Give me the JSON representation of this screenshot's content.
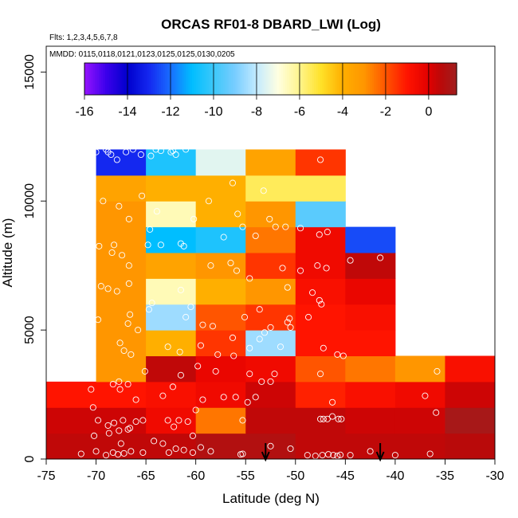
{
  "chart_data": {
    "type": "heatmap",
    "title": "ORCAS RF01-8 DBARD_LWI (Log)",
    "flights_note": "Flts: 1,2,3,4,5,6,7,8",
    "dates_note": "MMDD: 0115,0118,0121,0123,0125,0125,0130,0205",
    "xlabel": "Latitude (deg N)",
    "ylabel": "Altitude (m)",
    "xlim": [
      -75,
      -30
    ],
    "ylim": [
      0,
      16000
    ],
    "x_ticks": [
      -75,
      -70,
      -65,
      -60,
      -55,
      -50,
      -45,
      -40,
      -35,
      -30
    ],
    "y_ticks": [
      0,
      5000,
      10000,
      15000
    ],
    "colorbar": {
      "range": [
        -16,
        1.3
      ],
      "ticks": [
        -16,
        -14,
        -12,
        -10,
        -8,
        -6,
        -4,
        -2,
        0
      ]
    },
    "cell_size": {
      "lat": 5,
      "alt": 1000
    },
    "cells": [
      {
        "lat": -75,
        "alt": 0,
        "v": 0.5
      },
      {
        "lat": -70,
        "alt": 0,
        "v": 0.5
      },
      {
        "lat": -65,
        "alt": 0,
        "v": 0.5
      },
      {
        "lat": -60,
        "alt": 0,
        "v": 0.8
      },
      {
        "lat": -55,
        "alt": 0,
        "v": 0.8
      },
      {
        "lat": -50,
        "alt": 0,
        "v": 0.5
      },
      {
        "lat": -45,
        "alt": 0,
        "v": 0.5
      },
      {
        "lat": -40,
        "alt": 0,
        "v": 0.5
      },
      {
        "lat": -35,
        "alt": 0,
        "v": 0.6
      },
      {
        "lat": -75,
        "alt": 1000,
        "v": 0.3
      },
      {
        "lat": -70,
        "alt": 1000,
        "v": 0.3
      },
      {
        "lat": -65,
        "alt": 1000,
        "v": -0.5
      },
      {
        "lat": -60,
        "alt": 1000,
        "v": -2.5
      },
      {
        "lat": -55,
        "alt": 1000,
        "v": 0.5
      },
      {
        "lat": -50,
        "alt": 1000,
        "v": 0.5
      },
      {
        "lat": -45,
        "alt": 1000,
        "v": 0.3
      },
      {
        "lat": -40,
        "alt": 1000,
        "v": 0.3
      },
      {
        "lat": -35,
        "alt": 1000,
        "v": 1.1
      },
      {
        "lat": -75,
        "alt": 2000,
        "v": -1.0
      },
      {
        "lat": -70,
        "alt": 2000,
        "v": -1.0
      },
      {
        "lat": -65,
        "alt": 2000,
        "v": -0.8
      },
      {
        "lat": -60,
        "alt": 2000,
        "v": -0.5
      },
      {
        "lat": -55,
        "alt": 2000,
        "v": 0.3
      },
      {
        "lat": -50,
        "alt": 2000,
        "v": -1.2
      },
      {
        "lat": -45,
        "alt": 2000,
        "v": -0.8
      },
      {
        "lat": -40,
        "alt": 2000,
        "v": -0.5
      },
      {
        "lat": -35,
        "alt": 2000,
        "v": 0.3
      },
      {
        "lat": -70,
        "alt": 3000,
        "v": -3.0
      },
      {
        "lat": -65,
        "alt": 3000,
        "v": 0.5
      },
      {
        "lat": -60,
        "alt": 3000,
        "v": -0.3
      },
      {
        "lat": -55,
        "alt": 3000,
        "v": -0.5
      },
      {
        "lat": -50,
        "alt": 3000,
        "v": -2.0
      },
      {
        "lat": -45,
        "alt": 3000,
        "v": -2.5
      },
      {
        "lat": -40,
        "alt": 3000,
        "v": -3.0
      },
      {
        "lat": -35,
        "alt": 3000,
        "v": -0.8
      },
      {
        "lat": -70,
        "alt": 4000,
        "v": -3.0
      },
      {
        "lat": -65,
        "alt": 4000,
        "v": -4.0
      },
      {
        "lat": -60,
        "alt": 4000,
        "v": -1.5
      },
      {
        "lat": -55,
        "alt": 4000,
        "v": -8.5
      },
      {
        "lat": -50,
        "alt": 4000,
        "v": -1.0
      },
      {
        "lat": -45,
        "alt": 4000,
        "v": -1.0
      },
      {
        "lat": -70,
        "alt": 5000,
        "v": -3.0
      },
      {
        "lat": -65,
        "alt": 5000,
        "v": -8.5
      },
      {
        "lat": -60,
        "alt": 5000,
        "v": -2.0
      },
      {
        "lat": -55,
        "alt": 5000,
        "v": -1.5
      },
      {
        "lat": -50,
        "alt": 5000,
        "v": -1.0
      },
      {
        "lat": -45,
        "alt": 5000,
        "v": -0.8
      },
      {
        "lat": -70,
        "alt": 6000,
        "v": -3.0
      },
      {
        "lat": -65,
        "alt": 6000,
        "v": -6.5
      },
      {
        "lat": -60,
        "alt": 6000,
        "v": -4.0
      },
      {
        "lat": -55,
        "alt": 6000,
        "v": -3.0
      },
      {
        "lat": -50,
        "alt": 6000,
        "v": -0.8
      },
      {
        "lat": -45,
        "alt": 6000,
        "v": -0.3
      },
      {
        "lat": -70,
        "alt": 7000,
        "v": -3.0
      },
      {
        "lat": -65,
        "alt": 7000,
        "v": -3.5
      },
      {
        "lat": -60,
        "alt": 7000,
        "v": -3.0
      },
      {
        "lat": -55,
        "alt": 7000,
        "v": -1.5
      },
      {
        "lat": -50,
        "alt": 7000,
        "v": -0.5
      },
      {
        "lat": -45,
        "alt": 7000,
        "v": 0.5
      },
      {
        "lat": -70,
        "alt": 8000,
        "v": -3.0
      },
      {
        "lat": -65,
        "alt": 8000,
        "v": -11.0
      },
      {
        "lat": -60,
        "alt": 8000,
        "v": -10.5
      },
      {
        "lat": -55,
        "alt": 8000,
        "v": -2.5
      },
      {
        "lat": -50,
        "alt": 8000,
        "v": -0.5
      },
      {
        "lat": -45,
        "alt": 8000,
        "v": -12.5
      },
      {
        "lat": -70,
        "alt": 9000,
        "v": -3.0
      },
      {
        "lat": -65,
        "alt": 9000,
        "v": -6.5
      },
      {
        "lat": -60,
        "alt": 9000,
        "v": -4.0
      },
      {
        "lat": -55,
        "alt": 9000,
        "v": -3.0
      },
      {
        "lat": -50,
        "alt": 9000,
        "v": -9.5
      },
      {
        "lat": -70,
        "alt": 10000,
        "v": -3.5
      },
      {
        "lat": -65,
        "alt": 10000,
        "v": -4.0
      },
      {
        "lat": -60,
        "alt": 10000,
        "v": -4.0
      },
      {
        "lat": -55,
        "alt": 10000,
        "v": -5.5
      },
      {
        "lat": -50,
        "alt": 10000,
        "v": -5.5
      },
      {
        "lat": -70,
        "alt": 11000,
        "v": -13.0
      },
      {
        "lat": -65,
        "alt": 11000,
        "v": -10.5
      },
      {
        "lat": -60,
        "alt": 11000,
        "v": -7.5
      },
      {
        "lat": -55,
        "alt": 11000,
        "v": -3.5
      },
      {
        "lat": -50,
        "alt": 11000,
        "v": -1.5
      }
    ],
    "arrows_lat": [
      -53,
      -41.5
    ],
    "samples": [
      [
        -71.5,
        200
      ],
      [
        -70,
        300
      ],
      [
        -69,
        150
      ],
      [
        -68.3,
        250
      ],
      [
        -67.8,
        180
      ],
      [
        -67.2,
        220
      ],
      [
        -66.5,
        300
      ],
      [
        -65.3,
        250
      ],
      [
        -64.2,
        700
      ],
      [
        -63.3,
        600
      ],
      [
        -62.7,
        250
      ],
      [
        -62,
        400
      ],
      [
        -61.2,
        350
      ],
      [
        -60.3,
        250
      ],
      [
        -59.5,
        450
      ],
      [
        -58.5,
        300
      ],
      [
        -55.5,
        180
      ],
      [
        -55.3,
        200
      ],
      [
        -52.5,
        500
      ],
      [
        -50.5,
        400
      ],
      [
        -48.8,
        150
      ],
      [
        -48,
        120
      ],
      [
        -47.3,
        150
      ],
      [
        -46.7,
        180
      ],
      [
        -46.2,
        150
      ],
      [
        -45.8,
        120
      ],
      [
        -45.5,
        160
      ],
      [
        -44.5,
        150
      ],
      [
        -42.5,
        300
      ],
      [
        -40,
        150
      ],
      [
        -36.5,
        200
      ],
      [
        -70.2,
        900
      ],
      [
        -68.7,
        1000
      ],
      [
        -67.5,
        600
      ],
      [
        -66.8,
        1150
      ],
      [
        -69.8,
        1500
      ],
      [
        -68.8,
        1300
      ],
      [
        -68.2,
        1400
      ],
      [
        -67.7,
        1100
      ],
      [
        -67.3,
        1500
      ],
      [
        -66.6,
        1200
      ],
      [
        -66,
        1450
      ],
      [
        -65.3,
        1500
      ],
      [
        -62.8,
        1500
      ],
      [
        -62.2,
        1250
      ],
      [
        -61.7,
        1500
      ],
      [
        -60.8,
        1450
      ],
      [
        -60.3,
        900
      ],
      [
        -55.3,
        1500
      ],
      [
        -47.5,
        1550
      ],
      [
        -47.2,
        1550
      ],
      [
        -46.8,
        1550
      ],
      [
        -46.3,
        1650
      ],
      [
        -45.7,
        1550
      ],
      [
        -45.4,
        1550
      ],
      [
        -70.5,
        2700
      ],
      [
        -70.3,
        2000
      ],
      [
        -68.3,
        2900
      ],
      [
        -67.6,
        2700
      ],
      [
        -66,
        2300
      ],
      [
        -63.3,
        2450
      ],
      [
        -62.3,
        2800
      ],
      [
        -60,
        1900
      ],
      [
        -59.3,
        2300
      ],
      [
        -57.2,
        2400
      ],
      [
        -56,
        2400
      ],
      [
        -54.8,
        2200
      ],
      [
        -54,
        2400
      ],
      [
        -53.4,
        3000
      ],
      [
        -46.3,
        2200
      ],
      [
        -37,
        2450
      ],
      [
        -35.9,
        1800
      ],
      [
        -67.7,
        3000
      ],
      [
        -66.8,
        2900
      ],
      [
        -61.5,
        3250
      ],
      [
        -59.8,
        3600
      ],
      [
        -58,
        3400
      ],
      [
        -54.6,
        3300
      ],
      [
        -52.5,
        3000
      ],
      [
        -52.1,
        3300
      ],
      [
        -47.5,
        3300
      ],
      [
        -35.8,
        3400
      ],
      [
        -71,
        4250
      ],
      [
        -67.6,
        4500
      ],
      [
        -67.2,
        4200
      ],
      [
        -66.5,
        4050
      ],
      [
        -65.1,
        3400
      ],
      [
        -61.6,
        4150
      ],
      [
        -59.5,
        4400
      ],
      [
        -57.8,
        4050
      ],
      [
        -56.2,
        4000
      ],
      [
        -54.6,
        4300
      ],
      [
        -53.6,
        4650
      ],
      [
        -53.1,
        4900
      ],
      [
        -52.5,
        5100
      ],
      [
        -51.5,
        4350
      ],
      [
        -50.8,
        5300
      ],
      [
        -50.5,
        5100
      ],
      [
        -48.7,
        5500
      ],
      [
        -47.2,
        4300
      ],
      [
        -45.8,
        4050
      ],
      [
        -45.2,
        4000
      ],
      [
        -69.8,
        5400
      ],
      [
        -66.8,
        5250
      ],
      [
        -66.6,
        5600
      ],
      [
        -65.8,
        5000
      ],
      [
        -62.8,
        4350
      ],
      [
        -61,
        5500
      ],
      [
        -60.5,
        5900
      ],
      [
        -59.3,
        5200
      ],
      [
        -58.3,
        5150
      ],
      [
        -56.3,
        4700
      ],
      [
        -55.1,
        5500
      ],
      [
        -53.6,
        5800
      ],
      [
        -50.6,
        5450
      ],
      [
        -48.3,
        6450
      ],
      [
        -47.6,
        6150
      ],
      [
        -47.4,
        6000
      ],
      [
        -70.8,
        7100
      ],
      [
        -69.5,
        6700
      ],
      [
        -68.8,
        6600
      ],
      [
        -67.9,
        6500
      ],
      [
        -66.7,
        6800
      ],
      [
        -64.7,
        5800
      ],
      [
        -64.4,
        6050
      ],
      [
        -61.5,
        6550
      ],
      [
        -58.5,
        7500
      ],
      [
        -56.5,
        7600
      ],
      [
        -55.9,
        7300
      ],
      [
        -54.6,
        7000
      ],
      [
        -51.3,
        7400
      ],
      [
        -50.8,
        6650
      ],
      [
        -49.5,
        7300
      ],
      [
        -47.8,
        7500
      ],
      [
        -46.9,
        7400
      ],
      [
        -44.5,
        7700
      ],
      [
        -41.5,
        7800
      ],
      [
        -69.7,
        8250
      ],
      [
        -68.4,
        8000
      ],
      [
        -68.2,
        8300
      ],
      [
        -67.4,
        7900
      ],
      [
        -66.7,
        7500
      ],
      [
        -64.8,
        8300
      ],
      [
        -64.6,
        8900
      ],
      [
        -63.5,
        8300
      ],
      [
        -61.5,
        8350
      ],
      [
        -61.2,
        8250
      ],
      [
        -57.2,
        8600
      ],
      [
        -54,
        8650
      ],
      [
        -52,
        9000
      ],
      [
        -49.5,
        8950
      ],
      [
        -47.6,
        8700
      ],
      [
        -46.8,
        8800
      ],
      [
        -70.5,
        10200
      ],
      [
        -69.3,
        10000
      ],
      [
        -67.7,
        9800
      ],
      [
        -66.7,
        9300
      ],
      [
        -65.4,
        10200
      ],
      [
        -63.9,
        9600
      ],
      [
        -60.2,
        9300
      ],
      [
        -58.7,
        10000
      ],
      [
        -55.8,
        9500
      ],
      [
        -55.3,
        9000
      ],
      [
        -52.6,
        9300
      ],
      [
        -51,
        9000
      ],
      [
        -70,
        11900
      ],
      [
        -68.8,
        11900
      ],
      [
        -68.5,
        11800
      ],
      [
        -67.9,
        11600
      ],
      [
        -67,
        11900
      ],
      [
        -65.5,
        11800
      ],
      [
        -64.5,
        11750
      ],
      [
        -63.5,
        11950
      ],
      [
        -62.5,
        11900
      ],
      [
        -62,
        11800
      ],
      [
        -61,
        12000
      ],
      [
        -56.3,
        10700
      ],
      [
        -53.2,
        10400
      ],
      [
        -47.5,
        11600
      ],
      [
        -69,
        12000
      ],
      [
        -66.3,
        12000
      ],
      [
        -64,
        12000
      ],
      [
        -62.3,
        11950
      ]
    ]
  }
}
